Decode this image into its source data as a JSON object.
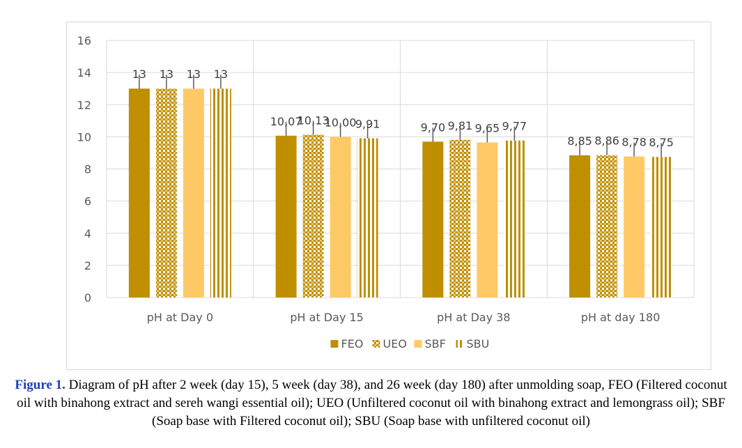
{
  "chart_data": {
    "type": "bar",
    "categories": [
      "pH at Day 0",
      "pH at Day 15",
      "pH at Day 38",
      "pH at day 180"
    ],
    "series": [
      {
        "name": "FEO",
        "values": [
          13,
          10.07,
          9.7,
          8.85
        ],
        "labels": [
          "13",
          "10,07",
          "9,70",
          "8,85"
        ],
        "color": "#bf8f00",
        "pattern": "solid"
      },
      {
        "name": "UEO",
        "values": [
          13,
          10.13,
          9.81,
          8.86
        ],
        "labels": [
          "13",
          "10,13",
          "9,81",
          "8,86"
        ],
        "color": "#bf8f00",
        "pattern": "checker"
      },
      {
        "name": "SBF",
        "values": [
          13,
          10.0,
          9.65,
          8.78
        ],
        "labels": [
          "13",
          "10,00",
          "9,65",
          "8,78"
        ],
        "color": "#ffc966",
        "pattern": "solid"
      },
      {
        "name": "SBU",
        "values": [
          13,
          9.91,
          9.77,
          8.75
        ],
        "labels": [
          "13",
          "9,91",
          "9,77",
          "8,75"
        ],
        "color": "#bf8f00",
        "pattern": "vertical-stripes"
      }
    ],
    "error_bars": true,
    "yticks": [
      0,
      2,
      4,
      6,
      8,
      10,
      12,
      14,
      16
    ],
    "ylim": [
      0,
      16
    ],
    "grid": true,
    "legend": "bottom-center"
  },
  "caption": {
    "label": "Figure 1.",
    "text": " Diagram of pH after 2 week (day 15), 5 week (day 38), and 26 week (day 180) after unmolding soap, FEO (Filtered coconut oil with binahong extract and sereh wangi essential oil); UEO (Unfiltered coconut oil with binahong extract and lemongrass oil); SBF (Soap base with Filtered coconut oil); SBU (Soap base with unfiltered coconut oil)"
  }
}
